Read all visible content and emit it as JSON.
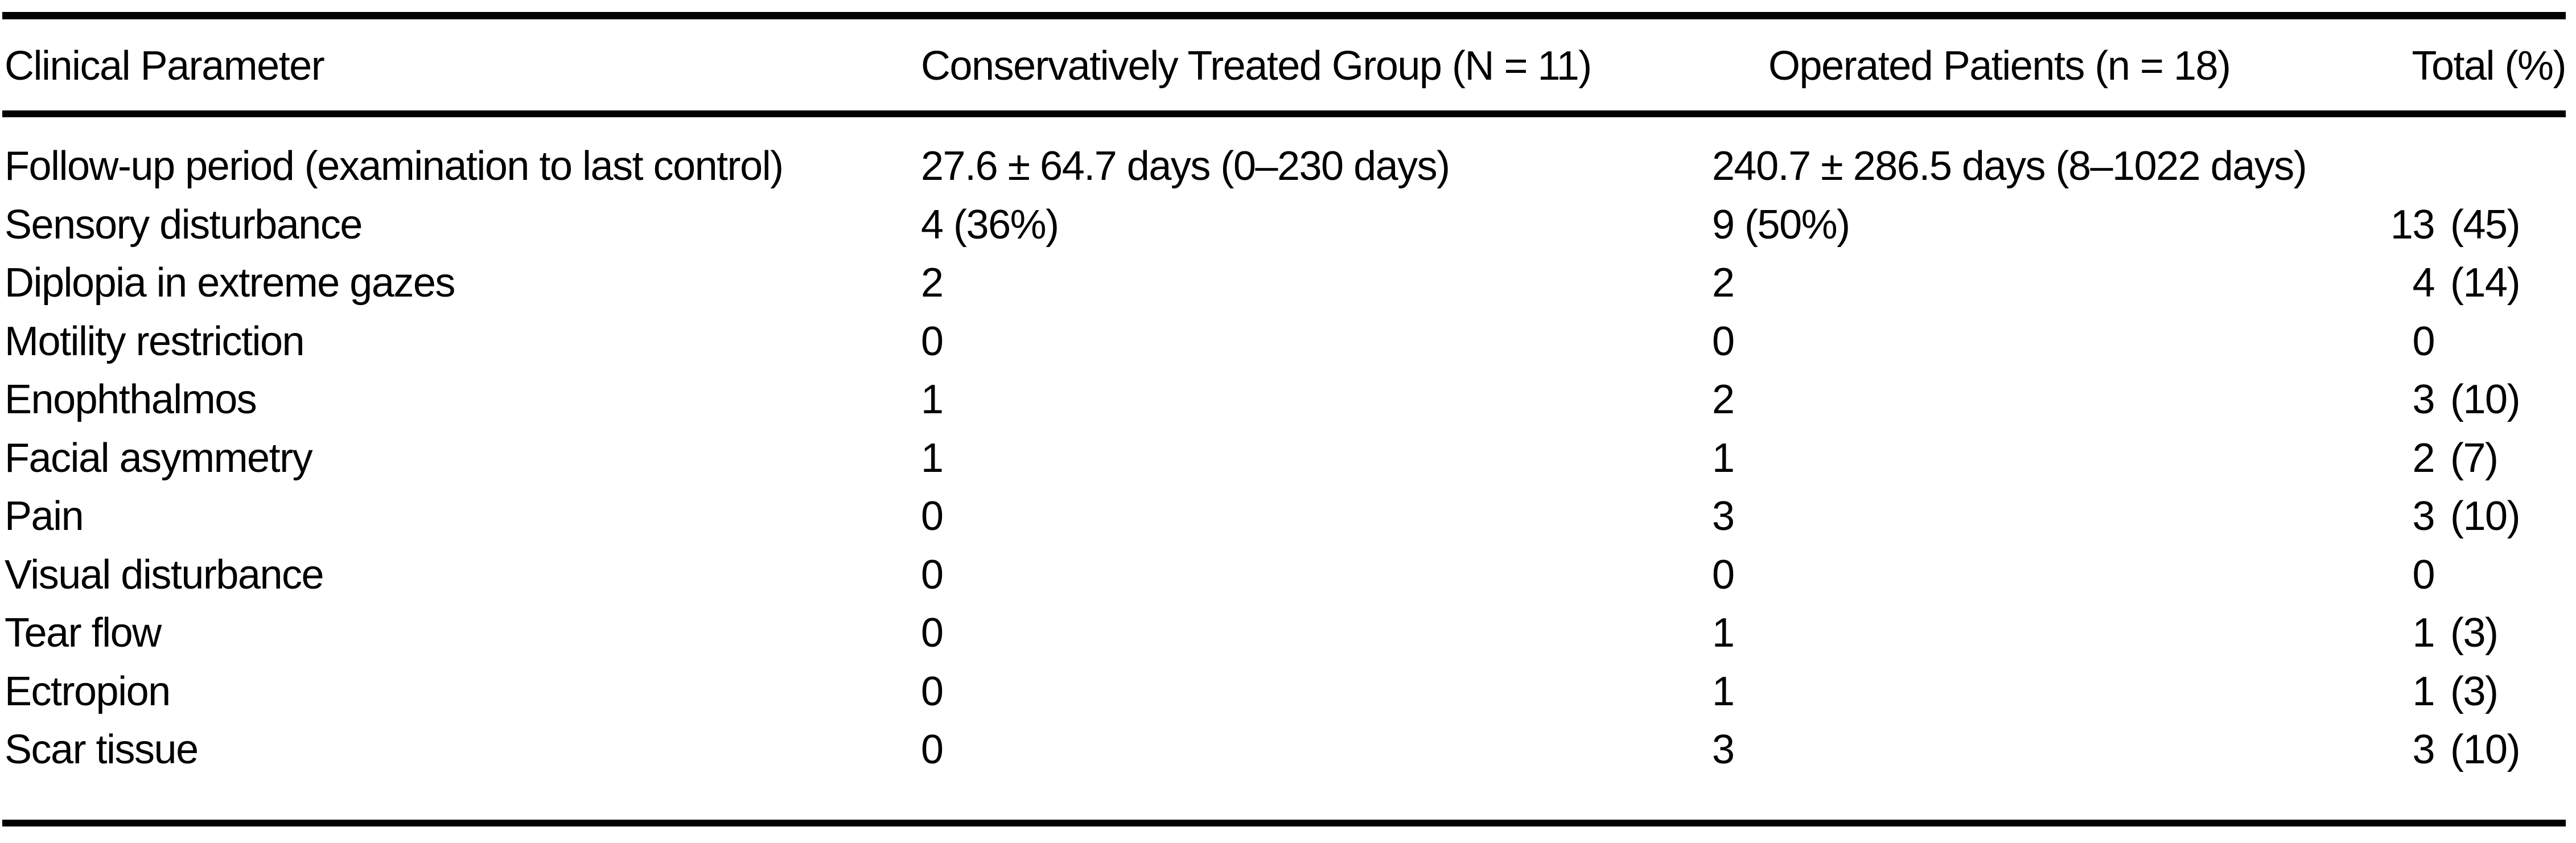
{
  "table": {
    "columns": {
      "parameter": "Clinical Parameter",
      "conservative": "Conservatively Treated Group (N = 11)",
      "operated": "Operated Patients (n = 18)",
      "total": "Total (%)"
    },
    "rows": [
      {
        "parameter": "Follow-up period (examination to last control)",
        "conservative": "27.6 ± 64.7 days (0–230 days)",
        "operated": "240.7 ± 286.5 days (8–1022 days)",
        "total_count": "",
        "total_pct": ""
      },
      {
        "parameter": "Sensory disturbance",
        "conservative": "4 (36%)",
        "operated": "9 (50%)",
        "total_count": "13",
        "total_pct": "(45)"
      },
      {
        "parameter": "Diplopia in extreme gazes",
        "conservative": "2",
        "operated": "2",
        "total_count": "4",
        "total_pct": "(14)"
      },
      {
        "parameter": "Motility restriction",
        "conservative": "0",
        "operated": "0",
        "total_count": "0",
        "total_pct": ""
      },
      {
        "parameter": "Enophthalmos",
        "conservative": "1",
        "operated": "2",
        "total_count": "3",
        "total_pct": "(10)"
      },
      {
        "parameter": "Facial asymmetry",
        "conservative": "1",
        "operated": "1",
        "total_count": "2",
        "total_pct": "(7)"
      },
      {
        "parameter": "Pain",
        "conservative": "0",
        "operated": "3",
        "total_count": "3",
        "total_pct": "(10)"
      },
      {
        "parameter": "Visual disturbance",
        "conservative": "0",
        "operated": "0",
        "total_count": "0",
        "total_pct": ""
      },
      {
        "parameter": "Tear flow",
        "conservative": "0",
        "operated": "1",
        "total_count": "1",
        "total_pct": "(3)"
      },
      {
        "parameter": "Ectropion",
        "conservative": "0",
        "operated": "1",
        "total_count": "1",
        "total_pct": "(3)"
      },
      {
        "parameter": "Scar tissue",
        "conservative": "0",
        "operated": "3",
        "total_count": "3",
        "total_pct": "(10)"
      }
    ]
  }
}
